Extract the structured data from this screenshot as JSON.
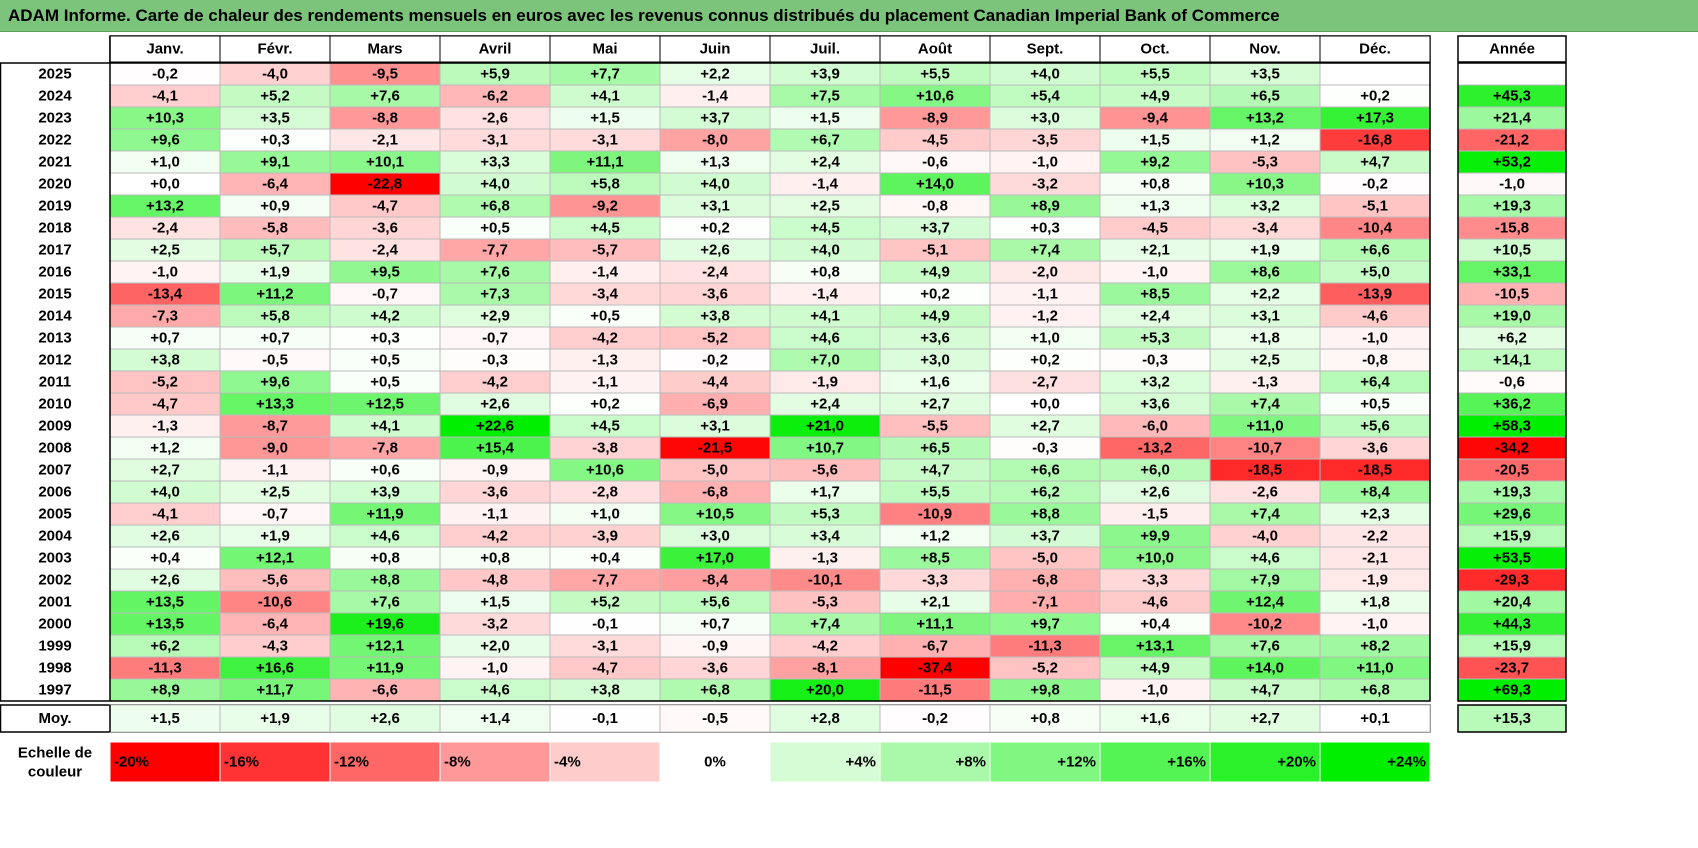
{
  "title": "ADAM Informe. Carte de chaleur des rendements mensuels en euros avec les revenus connus distribués du placement Canadian Imperial Bank of Commerce",
  "chart_data": {
    "type": "heatmap",
    "title": "ADAM Informe. Carte de chaleur des rendements mensuels en euros avec les revenus connus distribués du placement Canadian Imperial Bank of Commerce",
    "months": [
      "Janv.",
      "Févr.",
      "Mars",
      "Avril",
      "Mai",
      "Juin",
      "Juil.",
      "Août",
      "Sept.",
      "Oct.",
      "Nov.",
      "Déc."
    ],
    "year_header": "Année",
    "avg_label": "Moy.",
    "rows": [
      {
        "year": "2025",
        "values": [
          "-0,2",
          "-4,0",
          "-9,5",
          "+5,9",
          "+7,7",
          "+2,2",
          "+3,9",
          "+5,5",
          "+4,0",
          "+5,5",
          "+3,5",
          ""
        ],
        "annual": ""
      },
      {
        "year": "2024",
        "values": [
          "-4,1",
          "+5,2",
          "+7,6",
          "-6,2",
          "+4,1",
          "-1,4",
          "+7,5",
          "+10,6",
          "+5,4",
          "+4,9",
          "+6,5",
          "+0,2"
        ],
        "annual": "+45,3"
      },
      {
        "year": "2023",
        "values": [
          "+10,3",
          "+3,5",
          "-8,8",
          "-2,6",
          "+1,5",
          "+3,7",
          "+1,5",
          "-8,9",
          "+3,0",
          "-9,4",
          "+13,2",
          "+17,3"
        ],
        "annual": "+21,4"
      },
      {
        "year": "2022",
        "values": [
          "+9,6",
          "+0,3",
          "-2,1",
          "-3,1",
          "-3,1",
          "-8,0",
          "+6,7",
          "-4,5",
          "-3,5",
          "+1,5",
          "+1,2",
          "-16,8"
        ],
        "annual": "-21,2"
      },
      {
        "year": "2021",
        "values": [
          "+1,0",
          "+9,1",
          "+10,1",
          "+3,3",
          "+11,1",
          "+1,3",
          "+2,4",
          "-0,6",
          "-1,0",
          "+9,2",
          "-5,3",
          "+4,7"
        ],
        "annual": "+53,2"
      },
      {
        "year": "2020",
        "values": [
          "+0,0",
          "-6,4",
          "-22,8",
          "+4,0",
          "+5,8",
          "+4,0",
          "-1,4",
          "+14,0",
          "-3,2",
          "+0,8",
          "+10,3",
          "-0,2"
        ],
        "annual": "-1,0"
      },
      {
        "year": "2019",
        "values": [
          "+13,2",
          "+0,9",
          "-4,7",
          "+6,8",
          "-9,2",
          "+3,1",
          "+2,5",
          "-0,8",
          "+8,9",
          "+1,3",
          "+3,2",
          "-5,1"
        ],
        "annual": "+19,3"
      },
      {
        "year": "2018",
        "values": [
          "-2,4",
          "-5,8",
          "-3,6",
          "+0,5",
          "+4,5",
          "+0,2",
          "+4,5",
          "+3,7",
          "+0,3",
          "-4,5",
          "-3,4",
          "-10,4"
        ],
        "annual": "-15,8"
      },
      {
        "year": "2017",
        "values": [
          "+2,5",
          "+5,7",
          "-2,4",
          "-7,7",
          "-5,7",
          "+2,6",
          "+4,0",
          "-5,1",
          "+7,4",
          "+2,1",
          "+1,9",
          "+6,6"
        ],
        "annual": "+10,5"
      },
      {
        "year": "2016",
        "values": [
          "-1,0",
          "+1,9",
          "+9,5",
          "+7,6",
          "-1,4",
          "-2,4",
          "+0,8",
          "+4,9",
          "-2,0",
          "-1,0",
          "+8,6",
          "+5,0"
        ],
        "annual": "+33,1"
      },
      {
        "year": "2015",
        "values": [
          "-13,4",
          "+11,2",
          "-0,7",
          "+7,3",
          "-3,4",
          "-3,6",
          "-1,4",
          "+0,2",
          "-1,1",
          "+8,5",
          "+2,2",
          "-13,9"
        ],
        "annual": "-10,5"
      },
      {
        "year": "2014",
        "values": [
          "-7,3",
          "+5,8",
          "+4,2",
          "+2,9",
          "+0,5",
          "+3,8",
          "+4,1",
          "+4,9",
          "-1,2",
          "+2,4",
          "+3,1",
          "-4,6"
        ],
        "annual": "+19,0"
      },
      {
        "year": "2013",
        "values": [
          "+0,7",
          "+0,7",
          "+0,3",
          "-0,7",
          "-4,2",
          "-5,2",
          "+4,6",
          "+3,6",
          "+1,0",
          "+5,3",
          "+1,8",
          "-1,0"
        ],
        "annual": "+6,2"
      },
      {
        "year": "2012",
        "values": [
          "+3,8",
          "-0,5",
          "+0,5",
          "-0,3",
          "-1,3",
          "-0,2",
          "+7,0",
          "+3,0",
          "+0,2",
          "-0,3",
          "+2,5",
          "-0,8"
        ],
        "annual": "+14,1"
      },
      {
        "year": "2011",
        "values": [
          "-5,2",
          "+9,6",
          "+0,5",
          "-4,2",
          "-1,1",
          "-4,4",
          "-1,9",
          "+1,6",
          "-2,7",
          "+3,2",
          "-1,3",
          "+6,4"
        ],
        "annual": "-0,6"
      },
      {
        "year": "2010",
        "values": [
          "-4,7",
          "+13,3",
          "+12,5",
          "+2,6",
          "+0,2",
          "-6,9",
          "+2,4",
          "+2,7",
          "+0,0",
          "+3,6",
          "+7,4",
          "+0,5"
        ],
        "annual": "+36,2"
      },
      {
        "year": "2009",
        "values": [
          "-1,3",
          "-8,7",
          "+4,1",
          "+22,6",
          "+4,5",
          "+3,1",
          "+21,0",
          "-5,5",
          "+2,7",
          "-6,0",
          "+11,0",
          "+5,6"
        ],
        "annual": "+58,3"
      },
      {
        "year": "2008",
        "values": [
          "+1,2",
          "-9,0",
          "-7,8",
          "+15,4",
          "-3,8",
          "-21,5",
          "+10,7",
          "+6,5",
          "-0,3",
          "-13,2",
          "-10,7",
          "-3,6"
        ],
        "annual": "-34,2"
      },
      {
        "year": "2007",
        "values": [
          "+2,7",
          "-1,1",
          "+0,6",
          "-0,9",
          "+10,6",
          "-5,0",
          "-5,6",
          "+4,7",
          "+6,6",
          "+6,0",
          "-18,5",
          "-18,5"
        ],
        "annual": "-20,5"
      },
      {
        "year": "2006",
        "values": [
          "+4,0",
          "+2,5",
          "+3,9",
          "-3,6",
          "-2,8",
          "-6,8",
          "+1,7",
          "+5,5",
          "+6,2",
          "+2,6",
          "-2,6",
          "+8,4"
        ],
        "annual": "+19,3"
      },
      {
        "year": "2005",
        "values": [
          "-4,1",
          "-0,7",
          "+11,9",
          "-1,1",
          "+1,0",
          "+10,5",
          "+5,3",
          "-10,9",
          "+8,8",
          "-1,5",
          "+7,4",
          "+2,3"
        ],
        "annual": "+29,6"
      },
      {
        "year": "2004",
        "values": [
          "+2,6",
          "+1,9",
          "+4,6",
          "-4,2",
          "-3,9",
          "+3,0",
          "+3,4",
          "+1,2",
          "+3,7",
          "+9,9",
          "-4,0",
          "-2,2"
        ],
        "annual": "+15,9"
      },
      {
        "year": "2003",
        "values": [
          "+0,4",
          "+12,1",
          "+0,8",
          "+0,8",
          "+0,4",
          "+17,0",
          "-1,3",
          "+8,5",
          "-5,0",
          "+10,0",
          "+4,6",
          "-2,1"
        ],
        "annual": "+53,5"
      },
      {
        "year": "2002",
        "values": [
          "+2,6",
          "-5,6",
          "+8,8",
          "-4,8",
          "-7,7",
          "-8,4",
          "-10,1",
          "-3,3",
          "-6,8",
          "-3,3",
          "+7,9",
          "-1,9"
        ],
        "annual": "-29,3"
      },
      {
        "year": "2001",
        "values": [
          "+13,5",
          "-10,6",
          "+7,6",
          "+1,5",
          "+5,2",
          "+5,6",
          "-5,3",
          "+2,1",
          "-7,1",
          "-4,6",
          "+12,4",
          "+1,8"
        ],
        "annual": "+20,4"
      },
      {
        "year": "2000",
        "values": [
          "+13,5",
          "-6,4",
          "+19,6",
          "-3,2",
          "-0,1",
          "+0,7",
          "+7,4",
          "+11,1",
          "+9,7",
          "+0,4",
          "-10,2",
          "-1,0"
        ],
        "annual": "+44,3"
      },
      {
        "year": "1999",
        "values": [
          "+6,2",
          "-4,3",
          "+12,1",
          "+2,0",
          "-3,1",
          "-0,9",
          "-4,2",
          "-6,7",
          "-11,3",
          "+13,1",
          "+7,6",
          "+8,2"
        ],
        "annual": "+15,9"
      },
      {
        "year": "1998",
        "values": [
          "-11,3",
          "+16,6",
          "+11,9",
          "-1,0",
          "-4,7",
          "-3,6",
          "-8,1",
          "-37,4",
          "-5,2",
          "+4,9",
          "+14,0",
          "+11,0"
        ],
        "annual": "-23,7"
      },
      {
        "year": "1997",
        "values": [
          "+8,9",
          "+11,7",
          "-6,6",
          "+4,6",
          "+3,8",
          "+6,8",
          "+20,0",
          "-11,5",
          "+9,8",
          "-1,0",
          "+4,7",
          "+6,8"
        ],
        "annual": "+69,3"
      }
    ],
    "average": {
      "values": [
        "+1,5",
        "+1,9",
        "+2,6",
        "+1,4",
        "-0,1",
        "-0,5",
        "+2,8",
        "-0,2",
        "+0,8",
        "+1,6",
        "+2,7",
        "+0,1"
      ],
      "annual": "+15,3"
    },
    "scale_label": [
      "Echelle de",
      "couleur"
    ],
    "scale": [
      "-20%",
      "-16%",
      "-12%",
      "-8%",
      "-4%",
      "0%",
      "+4%",
      "+8%",
      "+12%",
      "+16%",
      "+20%",
      "+24%"
    ],
    "colors": {
      "max_red": "#ff0000",
      "max_green": "#00ee00",
      "neutral": "#ffffff",
      "title_bg": "#7cc47c"
    }
  }
}
